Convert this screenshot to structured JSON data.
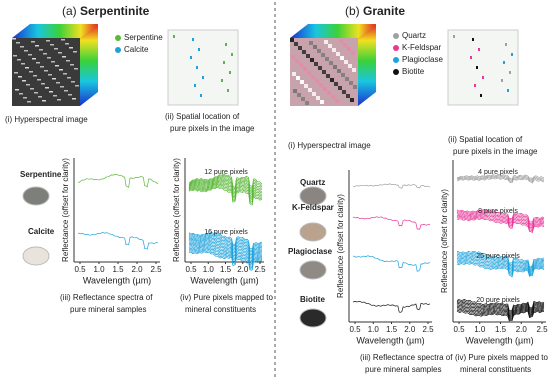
{
  "panels": [
    {
      "label": "(a)",
      "title": "Serpentinite",
      "legend": [
        {
          "name": "Serpentine",
          "color": "#5cb83a"
        },
        {
          "name": "Calcite",
          "color": "#1fa3dc"
        }
      ],
      "captions": {
        "image": "(i) Hyperspectral image",
        "spatial": [
          "(ii) Spatial location of",
          "pure pixels in the image"
        ],
        "spectra": [
          "(iii) Reflectance spectra of",
          "pure mineral samples"
        ],
        "pixels": [
          "(iv) Pure pixels mapped to",
          "mineral constituents"
        ]
      },
      "samples": [
        "Serpentine",
        "Calcite"
      ],
      "pixel_counts": [
        "12 pure pixels",
        "16 pure pixels"
      ],
      "y_label": "Reflectance (offset for clarity)",
      "x_label": "Wavelength (µm)",
      "x_ticks": [
        "0.5",
        "1.0",
        "1.5",
        "2.0",
        "2.5"
      ]
    },
    {
      "label": "(b)",
      "title": "Granite",
      "legend": [
        {
          "name": "Quartz",
          "color": "#a0a0a0"
        },
        {
          "name": "K-Feldspar",
          "color": "#e8399a"
        },
        {
          "name": "Plagioclase",
          "color": "#1fa3dc"
        },
        {
          "name": "Biotite",
          "color": "#111111"
        }
      ],
      "captions": {
        "image": "(i) Hyperspectral image",
        "spatial": [
          "(ii) Spatial location of",
          "pure pixels in the image"
        ],
        "spectra": [
          "(iii) Reflectance spectra of",
          "pure mineral samples"
        ],
        "pixels": [
          "(iv) Pure pixels mapped to",
          "mineral constituents"
        ]
      },
      "samples": [
        "Quartz",
        "K-Feldspar",
        "Plagioclase",
        "Biotite"
      ],
      "pixel_counts": [
        "4 pure pixels",
        "8 pure pixels",
        "25 pure pixels",
        "20 pure pixels"
      ],
      "y_label": "Reflectance (offset for clarity)",
      "x_label": "Wavelength (µm)",
      "x_ticks": [
        "0.5",
        "1.0",
        "1.5",
        "2.0",
        "2.5"
      ]
    }
  ]
}
